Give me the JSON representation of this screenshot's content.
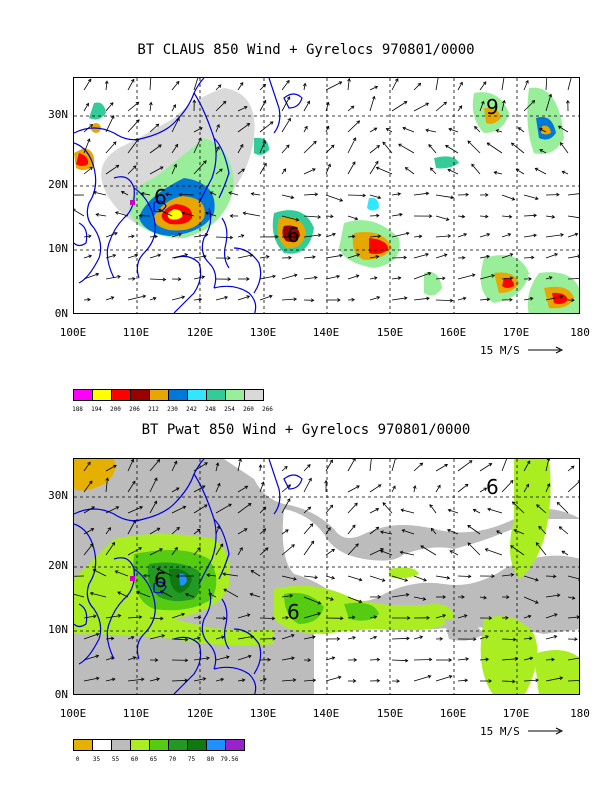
{
  "panels": [
    {
      "title": "BT CLAUS 850 Wind + Gyrelocs 970801/0000",
      "y_ticks": [
        "30N",
        "20N",
        "10N",
        "0N"
      ],
      "x_ticks": [
        "100E",
        "110E",
        "120E",
        "130E",
        "140E",
        "150E",
        "160E",
        "170E",
        "180"
      ],
      "scale_label": "15 M/S",
      "legend_colors": [
        "#ff00ff",
        "#ffff00",
        "#ff0000",
        "#990000",
        "#e6a800",
        "#0078d7",
        "#33e6ff",
        "#33cc99",
        "#99ee99",
        "#d9d9d9"
      ],
      "legend_labels": [
        "188",
        "194",
        "200",
        "206",
        "212",
        "230",
        "242",
        "248",
        "254",
        "260",
        "266"
      ],
      "cyclone_markers": [
        "6",
        "6",
        "9"
      ]
    },
    {
      "title": "BT Pwat 850 Wind + Gyrelocs 970801/0000",
      "y_ticks": [
        "30N",
        "20N",
        "10N",
        "0N"
      ],
      "x_ticks": [
        "100E",
        "110E",
        "120E",
        "130E",
        "140E",
        "150E",
        "160E",
        "170E",
        "180"
      ],
      "scale_label": "15 M/S",
      "legend_colors": [
        "#e6b000",
        "#ffffff",
        "#bcbcbc",
        "#aaee22",
        "#55cc11",
        "#229922",
        "#117711",
        "#1e90ff",
        "#9922cc"
      ],
      "legend_labels": [
        "0",
        "35",
        "55",
        "60",
        "65",
        "70",
        "75",
        "80",
        "79.56"
      ],
      "cyclone_markers": [
        "6",
        "6",
        "6"
      ]
    }
  ],
  "colors": {
    "coast": "#0000dd",
    "grid": "#000000"
  }
}
